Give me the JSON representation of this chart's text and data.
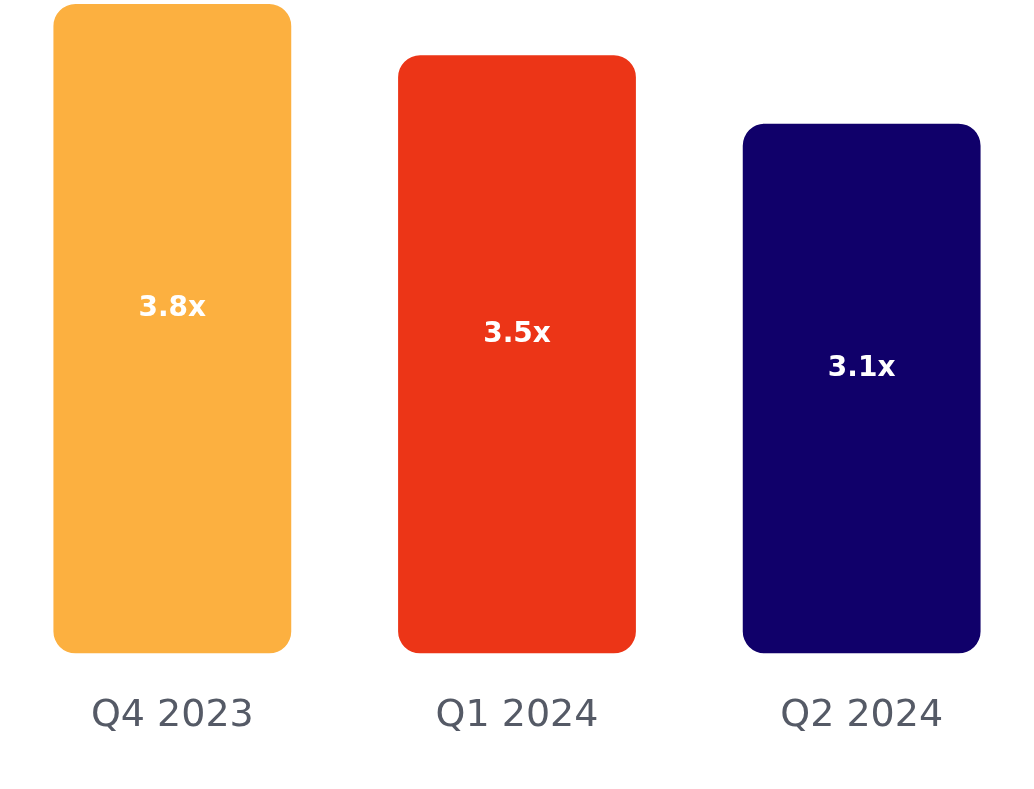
{
  "chart_data": {
    "type": "bar",
    "categories": [
      "Q4 2023",
      "Q1 2024",
      "Q2 2024"
    ],
    "values": [
      3.8,
      3.5,
      3.1
    ],
    "colors": [
      "#fcb040",
      "#ec3517",
      "#10006a"
    ],
    "value_labels": [
      "3.8x",
      "3.5x",
      "3.1x"
    ],
    "legend": false,
    "grid": false
  }
}
